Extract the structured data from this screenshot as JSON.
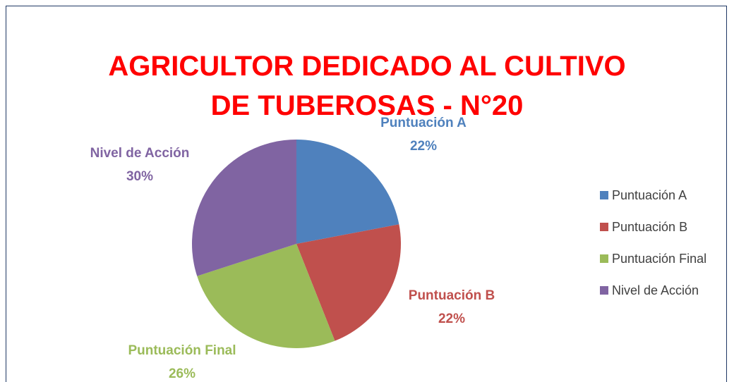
{
  "chart_data": {
    "type": "pie",
    "title": "AGRICULTOR DEDICADO AL CULTIVO DE TUBEROSAS - N°20",
    "categories": [
      "Puntuación A",
      "Puntuación B",
      "Puntuación Final",
      "Nivel de Acción"
    ],
    "values": [
      22,
      22,
      26,
      30
    ],
    "value_labels": [
      "22%",
      "22%",
      "26%",
      "30%"
    ],
    "colors": [
      "#4f81bd",
      "#c0504d",
      "#9bbb59",
      "#8064a2"
    ],
    "legend": "right"
  }
}
